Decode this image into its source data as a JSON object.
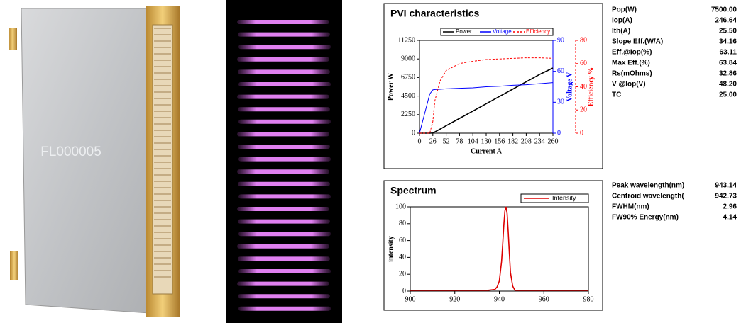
{
  "photo": {
    "label": "FL000005"
  },
  "chart_data": [
    {
      "type": "line",
      "title": "PVI characteristics",
      "x_label": "Current A",
      "y_label": "Power W",
      "y2_label": "Voltage V",
      "y3_label": "Efficiency %",
      "x": [
        0,
        10,
        20,
        26,
        30,
        40,
        52,
        78,
        104,
        130,
        156,
        182,
        208,
        234,
        260
      ],
      "series": [
        {
          "name": "Power",
          "color": "#000000",
          "line_style": "solid",
          "values": [
            0,
            0,
            0,
            20,
            150,
            490,
            905,
            1793,
            2681,
            3570,
            4458,
            5346,
            6234,
            7123,
            7900
          ]
        },
        {
          "name": "Voltage",
          "color": "#0000ff",
          "line_style": "solid",
          "axis": "y2",
          "values": [
            0,
            19,
            38,
            42,
            42.3,
            42.6,
            43,
            43.5,
            44,
            45,
            45.5,
            46.5,
            47,
            48,
            49
          ]
        },
        {
          "name": "Efficiency",
          "color": "#ff0000",
          "line_style": "dashed",
          "axis": "y3",
          "values": [
            0,
            0,
            0,
            10,
            28,
            45,
            54,
            60,
            62,
            63.5,
            64,
            64.5,
            65,
            65,
            64.5
          ]
        }
      ],
      "xlim": [
        0,
        260
      ],
      "xticks": [
        0,
        26,
        52,
        78,
        104,
        130,
        156,
        182,
        208,
        234,
        260
      ],
      "ylim": [
        0,
        11250
      ],
      "yticks": [
        0,
        2250,
        4500,
        6750,
        9000,
        11250
      ],
      "y2lim": [
        0,
        90
      ],
      "y2ticks": [
        0,
        30,
        60,
        90
      ],
      "y3lim": [
        0,
        80
      ],
      "y3ticks": [
        0,
        20,
        40,
        60,
        80
      ]
    },
    {
      "type": "line",
      "title": "Spectrum",
      "y_label": "intensity",
      "x": [
        900,
        935,
        938,
        939,
        940,
        941,
        941.5,
        942,
        942.5,
        943,
        943.5,
        944,
        944.5,
        945,
        946,
        947,
        980
      ],
      "series": [
        {
          "name": "Intensity",
          "color": "#dd0000",
          "line_style": "solid",
          "values": [
            1,
            1,
            2,
            5,
            12,
            35,
            55,
            78,
            95,
            100,
            92,
            70,
            45,
            22,
            6,
            1,
            1
          ]
        }
      ],
      "xlim": [
        900,
        980
      ],
      "xticks": [
        900,
        920,
        940,
        960,
        980
      ],
      "ylim": [
        0,
        100
      ],
      "yticks": [
        0,
        20,
        40,
        60,
        80,
        100
      ]
    }
  ],
  "params": [
    [
      [
        "Pop(W)",
        "7500.00"
      ],
      [
        "Iop(A)",
        "246.64"
      ],
      [
        "Ith(A)",
        "25.50"
      ],
      [
        "Slope Eff.(W/A)",
        "34.16"
      ],
      [
        "Eff.@Iop(%)",
        "63.11"
      ],
      [
        "Max Eff.(%)",
        "63.84"
      ],
      [
        "Rs(mOhms)",
        "32.86"
      ],
      [
        "V @Iop(V)",
        "48.20"
      ],
      [
        "TC",
        "25.00"
      ]
    ],
    [
      [
        "Peak wavelength(nm)",
        "943.14"
      ],
      [
        "Centroid wavelength(",
        "942.73"
      ],
      [
        "FWHM(nm)",
        "2.96"
      ],
      [
        "FW90% Energy(nm)",
        "4.14"
      ]
    ]
  ]
}
